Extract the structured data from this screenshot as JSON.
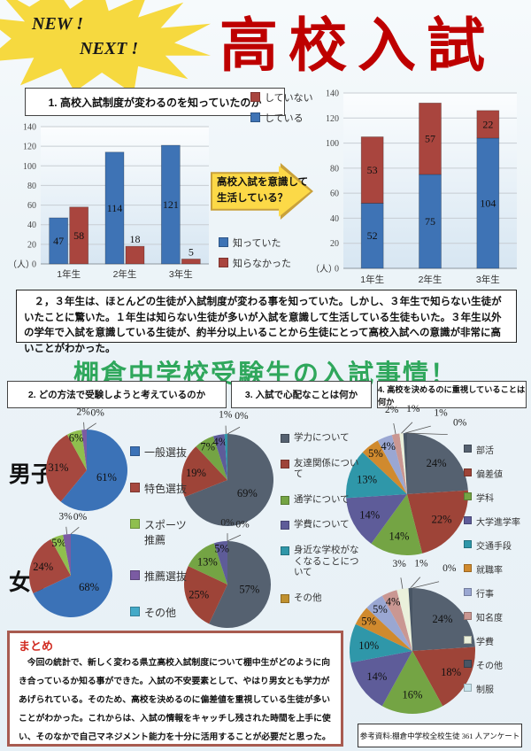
{
  "header": {
    "badge_line1": "NEW !",
    "badge_line2": "NEXT !",
    "title": "高校入試"
  },
  "bar_charts": {
    "left_title": "1. 高校入試制度が変わるのを知っていたのか",
    "arrow_label_line1": "高校入試を意識して",
    "arrow_label_line2": "生活している？"
  },
  "summary_paragraph": "　２，３年生は、ほとんどの生徒が入試制度が変わる事を知っていた。しかし、３年生で知らない生徒がいたことに驚いた。１年生は知らない生徒が多いが入試を意識して生活している生徒もいた。３年生以外の学年で入試を意識している生徒が、約半分以上いることから生徒にとって高校入試への意識が非常に高いことがわかった。",
  "middle_title": "棚倉中学校受験生の入試事情！",
  "sections": [
    {
      "title": "2. どの方法で受験しようと考えているのか"
    },
    {
      "title": "3. 入試で心配なことは何か"
    },
    {
      "title": "4. 高校を決めるのに重視していることは何か"
    }
  ],
  "row_labels": {
    "male": "男子",
    "female": "女子"
  },
  "matome": {
    "title": "まとめ",
    "body": "　今回の統計で、新しく変わる県立高校入試制度について棚中生がどのように向き合っているか知る事ができた。入試の不安要素として、やはり男女とも学力があげられている。そのため、高校を決めるのに偏差値を重視している生徒が多いことがわかった。これからは、入試の情報をキャッチし残された時間を上手に使い、そのなかで自己マネジメント能力を十分に活用することが必要だと思った。"
  },
  "reference_note": "参考資料:棚倉中学校全校生徒 361 人アンケート",
  "chart_data": [
    {
      "id": "awareness-grouped-bar",
      "type": "bar",
      "title": "1. 高校入試制度が変わるのを知っていたのか",
      "categories": [
        "1年生",
        "2年生",
        "3年生"
      ],
      "series": [
        {
          "name": "知っていた",
          "color": "#3e73b5",
          "values": [
            47,
            114,
            121
          ]
        },
        {
          "name": "知らなかった",
          "color": "#a9453e",
          "values": [
            58,
            18,
            5
          ]
        }
      ],
      "legend": [
        {
          "label": "知っていた",
          "color": "#3e73b5"
        },
        {
          "label": "知らなかった",
          "color": "#a9453e"
        }
      ],
      "ylabel": "（人）",
      "ylim": [
        0,
        140
      ],
      "ytick": 20,
      "grid": true,
      "legend_position": "right-bottom"
    },
    {
      "id": "consciousness-stacked-bar",
      "type": "stacked-bar",
      "categories": [
        "1年生",
        "2年生",
        "3年生"
      ],
      "series": [
        {
          "name": "している",
          "color": "#3e73b5",
          "values": [
            52,
            75,
            104
          ]
        },
        {
          "name": "していない",
          "color": "#a9453e",
          "values": [
            53,
            57,
            22
          ]
        }
      ],
      "legend": [
        {
          "label": "していない",
          "color": "#a9453e"
        },
        {
          "label": "している",
          "color": "#3e73b5"
        }
      ],
      "ylabel": "（人）",
      "ylim": [
        0,
        140
      ],
      "ytick": 20,
      "grid": true,
      "legend_position": "top"
    },
    {
      "id": "pie-exam-method-male",
      "type": "pie",
      "group": "男子",
      "labels": [
        "一般選抜",
        "特色選抜",
        "スポーツ推薦",
        "推薦選抜",
        "その他"
      ],
      "values": [
        61,
        31,
        6,
        2,
        0
      ],
      "colors": [
        "#3b72b7",
        "#a6483f",
        "#8fbf4e",
        "#7b5ba3",
        "#44aac8"
      ]
    },
    {
      "id": "pie-exam-method-female",
      "type": "pie",
      "group": "女子",
      "labels": [
        "一般選抜",
        "特色選抜",
        "スポーツ推薦",
        "推薦選抜",
        "その他"
      ],
      "values": [
        68,
        24,
        5,
        3,
        0
      ],
      "colors": [
        "#3b72b7",
        "#a6483f",
        "#8fbf4e",
        "#7b5ba3",
        "#44aac8"
      ]
    },
    {
      "id": "pie-exam-worry-male",
      "type": "pie",
      "group": "男子",
      "labels": [
        "学力について",
        "友達関係について",
        "通学について",
        "学費について",
        "身近な学校がなくなることについて",
        "その他"
      ],
      "values": [
        69,
        19,
        7,
        4,
        1,
        0
      ],
      "colors": [
        "#556170",
        "#9e4438",
        "#74a444",
        "#5e5c99",
        "#2f97a9",
        "#c0912f"
      ]
    },
    {
      "id": "pie-exam-worry-female",
      "type": "pie",
      "group": "女子",
      "labels": [
        "学力について",
        "友達関係について",
        "通学について",
        "学費について",
        "身近な学校がなくなることについて",
        "その他"
      ],
      "values": [
        57,
        25,
        13,
        5,
        0,
        0
      ],
      "colors": [
        "#556170",
        "#9e4438",
        "#74a444",
        "#5e5c99",
        "#2f97a9",
        "#c0912f"
      ]
    },
    {
      "id": "pie-school-priority-male",
      "type": "pie",
      "group": "男子",
      "labels": [
        "部活",
        "偏差値",
        "学科",
        "大学進学率",
        "交通手段",
        "就職率",
        "行事",
        "知名度",
        "学費",
        "その他",
        "制服"
      ],
      "values": [
        24,
        22,
        14,
        14,
        13,
        5,
        4,
        2,
        1,
        1,
        0
      ],
      "colors": [
        "#556170",
        "#9e4438",
        "#74a444",
        "#5e5c99",
        "#2f97a9",
        "#d08a2e",
        "#9aa7d2",
        "#ca9792",
        "#eaf0db",
        "#485564",
        "#c8e4ec"
      ]
    },
    {
      "id": "pie-school-priority-female",
      "type": "pie",
      "group": "女子",
      "labels": [
        "部活",
        "偏差値",
        "学科",
        "大学進学率",
        "交通手段",
        "就職率",
        "行事",
        "知名度",
        "学費",
        "その他",
        "制服"
      ],
      "values": [
        24,
        18,
        16,
        14,
        10,
        5,
        5,
        4,
        3,
        1,
        0
      ],
      "colors": [
        "#556170",
        "#9e4438",
        "#74a444",
        "#5e5c99",
        "#2f97a9",
        "#d08a2e",
        "#9aa7d2",
        "#ca9792",
        "#eaf0db",
        "#485564",
        "#c8e4ec"
      ]
    }
  ]
}
